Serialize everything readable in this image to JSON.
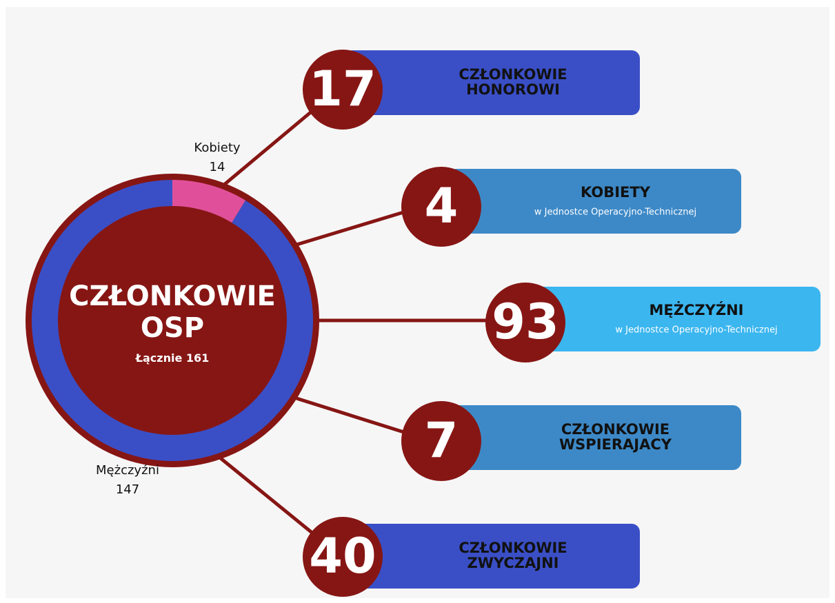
{
  "donut": {
    "title": [
      "CZŁONKOWIE",
      "OSP"
    ],
    "total_label": "Łącznie",
    "total": 161,
    "segments": [
      {
        "label": "Kobiety",
        "value": 14,
        "color": "#e0509a"
      },
      {
        "label": "Mężczyźni",
        "value": 147,
        "color": "#3a4fc6"
      }
    ]
  },
  "items": [
    {
      "value": 17,
      "title": [
        "CZŁONKOWIE",
        "HONOROWI"
      ],
      "color": "#3a4fc6"
    },
    {
      "value": 4,
      "title": [
        "KOBIETY"
      ],
      "subtitle": "w Jednostce Operacyjno-Technicznej",
      "color": "#3d89c7"
    },
    {
      "value": 93,
      "title": [
        "MĘŻCZYŹNI"
      ],
      "subtitle": "w Jednostce Operacyjno-Technicznej",
      "color": "#3bb6ef"
    },
    {
      "value": 7,
      "title": [
        "CZŁONKOWIE",
        "WSPIERAJACY"
      ],
      "color": "#3d89c7"
    },
    {
      "value": 40,
      "title": [
        "CZŁONKOWIE",
        "ZWYCZAJNI"
      ],
      "color": "#3a4fc6"
    }
  ]
}
